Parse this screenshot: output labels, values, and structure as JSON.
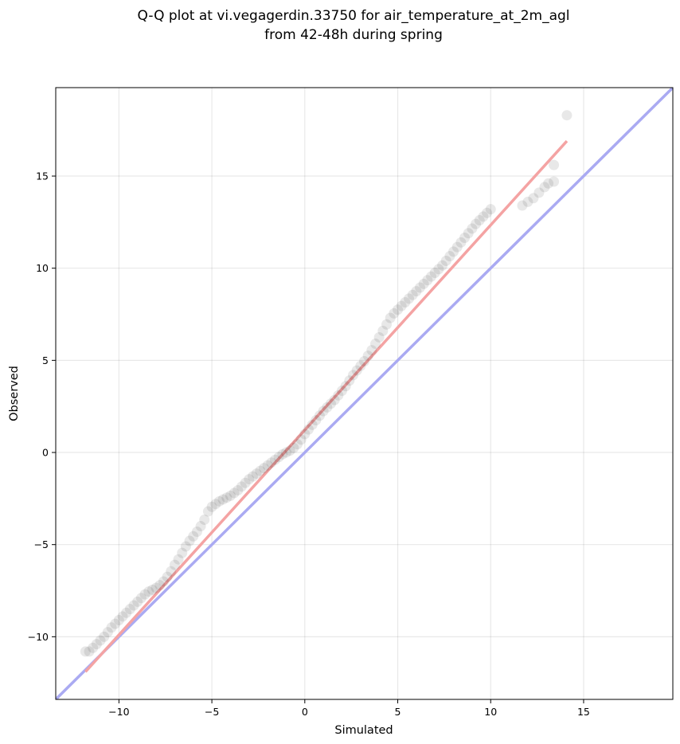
{
  "chart_data": {
    "type": "scatter",
    "title_lines": [
      "Q-Q plot at vi.vegagerdin.33750 for air_temperature_at_2m_agl",
      "from 42-48h during spring"
    ],
    "xlabel": "Simulated",
    "ylabel": "Observed",
    "xlim": [
      -13.4,
      19.8
    ],
    "ylim": [
      -13.4,
      19.8
    ],
    "xticks": [
      -10,
      -5,
      0,
      5,
      10,
      15
    ],
    "yticks": [
      -10,
      -5,
      0,
      5,
      10,
      15
    ],
    "xtick_labels": [
      "−10",
      "−5",
      "0",
      "5",
      "10",
      "15"
    ],
    "ytick_labels": [
      "−10",
      "−5",
      "0",
      "5",
      "10",
      "15"
    ],
    "grid": true,
    "reference_line": {
      "type": "identity",
      "color": "#aaaaf2"
    },
    "fit_line": {
      "x": [
        -11.8,
        14.1
      ],
      "y": [
        -11.9,
        16.9
      ],
      "color": "#f4a3a3"
    },
    "point_color": "#000000",
    "qq_points": {
      "x": [
        -11.8,
        -11.6,
        -11.4,
        -11.2,
        -11.0,
        -10.8,
        -10.6,
        -10.4,
        -10.2,
        -10.0,
        -9.8,
        -9.6,
        -9.4,
        -9.2,
        -9.0,
        -8.8,
        -8.6,
        -8.4,
        -8.2,
        -8.0,
        -7.8,
        -7.6,
        -7.4,
        -7.2,
        -7.0,
        -6.8,
        -6.6,
        -6.4,
        -6.2,
        -6.0,
        -5.8,
        -5.6,
        -5.4,
        -5.2,
        -5.0,
        -4.8,
        -4.6,
        -4.4,
        -4.2,
        -4.0,
        -3.8,
        -3.6,
        -3.4,
        -3.2,
        -3.0,
        -2.8,
        -2.6,
        -2.4,
        -2.2,
        -2.0,
        -1.8,
        -1.6,
        -1.4,
        -1.2,
        -1.0,
        -0.8,
        -0.6,
        -0.4,
        -0.2,
        0.0,
        0.2,
        0.4,
        0.6,
        0.8,
        1.0,
        1.2,
        1.4,
        1.6,
        1.8,
        2.0,
        2.2,
        2.4,
        2.6,
        2.8,
        3.0,
        3.2,
        3.4,
        3.6,
        3.8,
        4.0,
        4.2,
        4.4,
        4.6,
        4.8,
        5.0,
        5.2,
        5.4,
        5.6,
        5.8,
        6.0,
        6.2,
        6.4,
        6.6,
        6.8,
        7.0,
        7.2,
        7.4,
        7.6,
        7.8,
        8.0,
        8.2,
        8.4,
        8.6,
        8.8,
        9.0,
        9.2,
        9.4,
        9.6,
        9.8,
        10.0,
        11.7,
        12.0,
        12.3,
        12.6,
        12.9,
        13.1,
        13.4,
        13.4,
        14.1
      ],
      "y": [
        -10.8,
        -10.8,
        -10.6,
        -10.4,
        -10.2,
        -10.0,
        -9.75,
        -9.5,
        -9.3,
        -9.1,
        -8.9,
        -8.7,
        -8.5,
        -8.3,
        -8.1,
        -7.9,
        -7.7,
        -7.55,
        -7.45,
        -7.35,
        -7.2,
        -7.0,
        -6.75,
        -6.45,
        -6.1,
        -5.8,
        -5.45,
        -5.1,
        -4.8,
        -4.55,
        -4.3,
        -4.0,
        -3.65,
        -3.2,
        -2.95,
        -2.8,
        -2.65,
        -2.55,
        -2.45,
        -2.35,
        -2.2,
        -2.05,
        -1.85,
        -1.65,
        -1.45,
        -1.3,
        -1.15,
        -1.0,
        -0.85,
        -0.7,
        -0.55,
        -0.4,
        -0.25,
        -0.1,
        0.0,
        0.1,
        0.25,
        0.45,
        0.7,
        1.0,
        1.25,
        1.5,
        1.75,
        2.0,
        2.25,
        2.45,
        2.65,
        2.85,
        3.1,
        3.35,
        3.6,
        3.9,
        4.2,
        4.45,
        4.7,
        4.95,
        5.25,
        5.55,
        5.9,
        6.25,
        6.6,
        6.95,
        7.3,
        7.55,
        7.75,
        7.95,
        8.15,
        8.35,
        8.55,
        8.75,
        8.95,
        9.15,
        9.35,
        9.55,
        9.75,
        9.95,
        10.15,
        10.4,
        10.65,
        10.9,
        11.15,
        11.4,
        11.65,
        11.9,
        12.15,
        12.4,
        12.6,
        12.8,
        13.0,
        13.2,
        13.4,
        13.6,
        13.8,
        14.1,
        14.4,
        14.6,
        14.7,
        15.6,
        18.3
      ]
    }
  }
}
